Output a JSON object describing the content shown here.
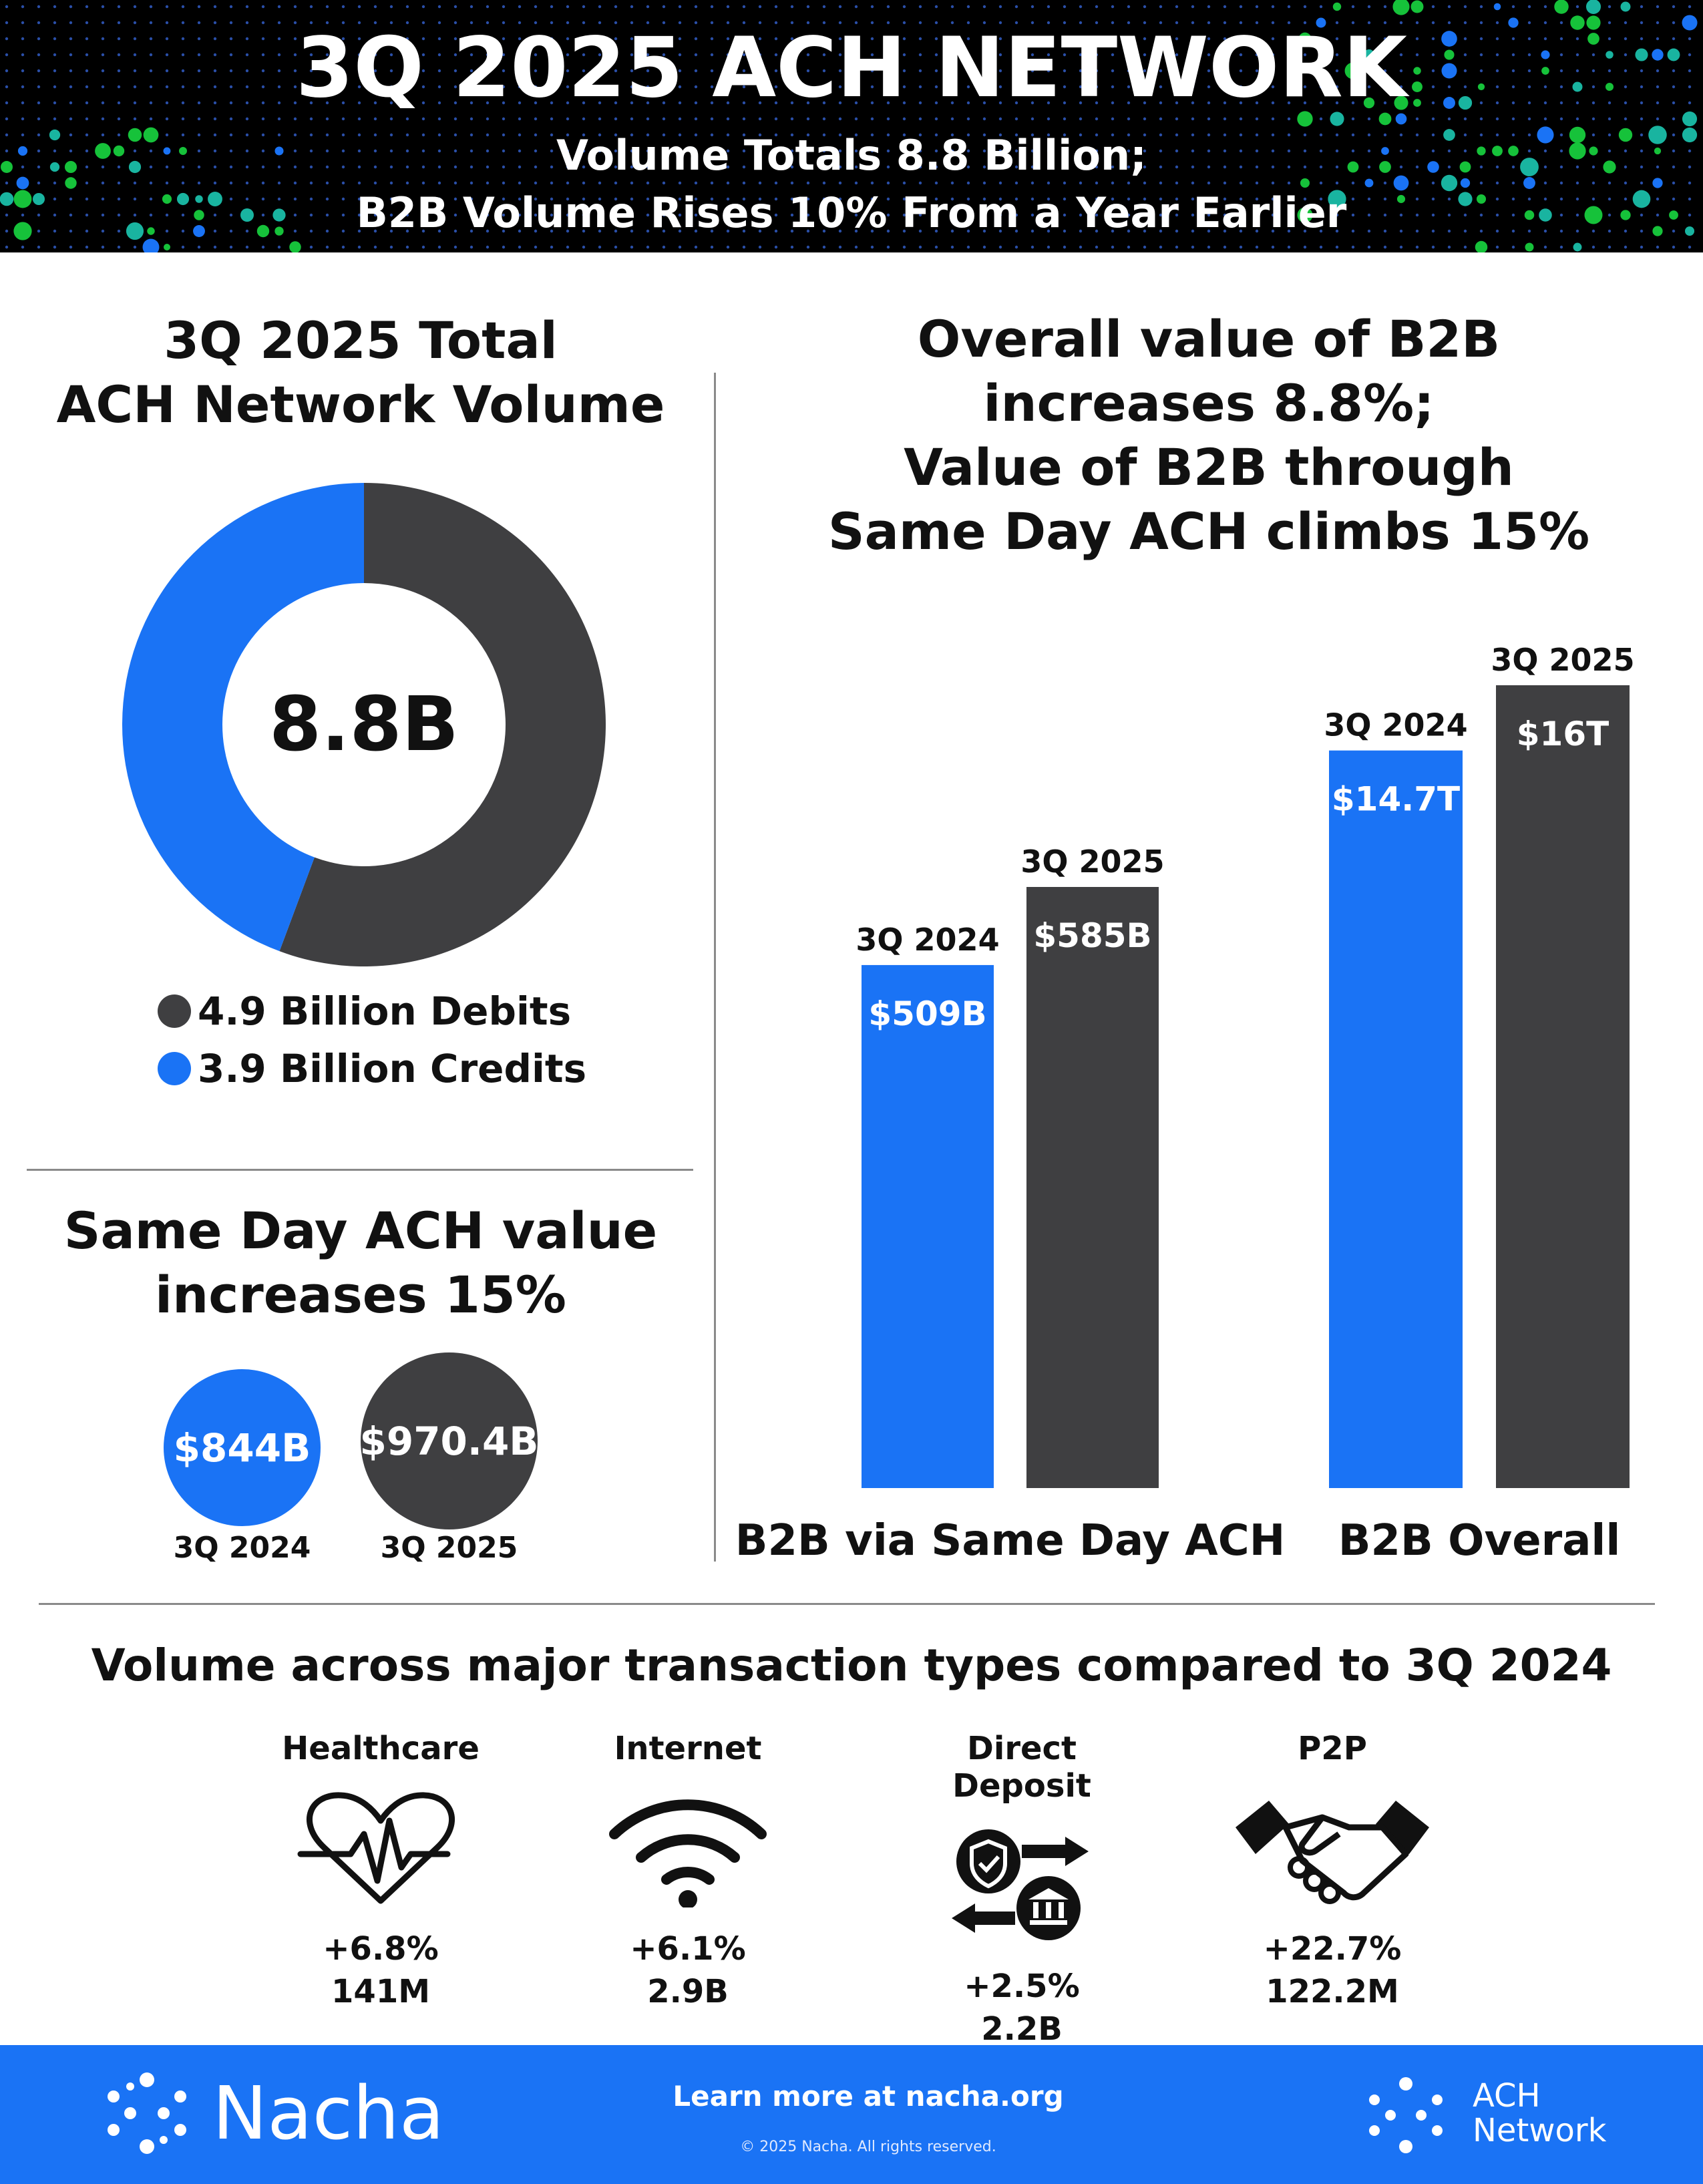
{
  "header": {
    "title": "3Q 2025 ACH NETWORK",
    "subtitle_line1": "Volume Totals 8.8 Billion;",
    "subtitle_line2": "B2B Volume Rises 10% From a Year Earlier"
  },
  "total_volume": {
    "title_line1": "3Q 2025 Total",
    "title_line2": "ACH Network Volume",
    "center_label": "8.8B",
    "legend": [
      {
        "label": "4.9 Billion Debits",
        "color": "#3f3f41"
      },
      {
        "label": "3.9 Billion Credits",
        "color": "#1a73f5"
      }
    ]
  },
  "same_day": {
    "title_line1": "Same Day ACH value",
    "title_line2": "increases 15%",
    "items": [
      {
        "value": "$844B",
        "period": "3Q 2024",
        "color": "#1a73f5"
      },
      {
        "value": "$970.4B",
        "period": "3Q 2025",
        "color": "#3f3f41"
      }
    ]
  },
  "b2b": {
    "title_lines": [
      "Overall value of B2B",
      "increases 8.8%;",
      "Value of B2B through",
      "Same Day ACH climbs 15%"
    ]
  },
  "transaction_types": {
    "title": "Volume across major transaction types compared to 3Q 2024",
    "items": [
      {
        "name": "Healthcare",
        "icon": "heartbeat-icon",
        "change": "+6.8%",
        "volume": "141M"
      },
      {
        "name": "Internet",
        "icon": "wifi-icon",
        "change": "+6.1%",
        "volume": "2.9B"
      },
      {
        "name": "Direct Deposit",
        "icon": "direct-deposit-icon",
        "change": "+2.5%",
        "volume": "2.2B"
      },
      {
        "name": "P2P",
        "icon": "handshake-icon",
        "change": "+22.7%",
        "volume": "122.2M"
      }
    ]
  },
  "footer": {
    "brand": "Nacha",
    "cta": "Learn more at nacha.org",
    "copyright": "© 2025 Nacha. All rights reserved.",
    "network_line1": "ACH",
    "network_line2": "Network"
  },
  "colors": {
    "blue": "#1a73f5",
    "dark": "#3f3f41",
    "green": "#16c23a"
  },
  "chart_data": [
    {
      "type": "pie",
      "title": "3Q 2025 Total ACH Network Volume",
      "unit": "Billion",
      "categories": [
        "Debits",
        "Credits"
      ],
      "values": [
        4.9,
        3.9
      ],
      "total": 8.8
    },
    {
      "type": "bar",
      "title": "Same Day ACH value increases 15%",
      "categories": [
        "3Q 2024",
        "3Q 2025"
      ],
      "values": [
        844,
        970.4
      ],
      "unit": "$B",
      "value_labels": [
        "$844B",
        "$970.4B"
      ]
    },
    {
      "type": "bar",
      "title": "Value of B2B through Same Day ACH",
      "group_label": "B2B via Same Day ACH",
      "categories": [
        "3Q 2024",
        "3Q 2025"
      ],
      "values": [
        0.509,
        0.585
      ],
      "unit": "$T",
      "value_labels": [
        "$509B",
        "$585B"
      ]
    },
    {
      "type": "bar",
      "title": "Overall value of B2B",
      "group_label": "B2B Overall",
      "categories": [
        "3Q 2024",
        "3Q 2025"
      ],
      "values": [
        14.7,
        16
      ],
      "unit": "$T",
      "value_labels": [
        "$14.7T",
        "$16T"
      ]
    }
  ]
}
